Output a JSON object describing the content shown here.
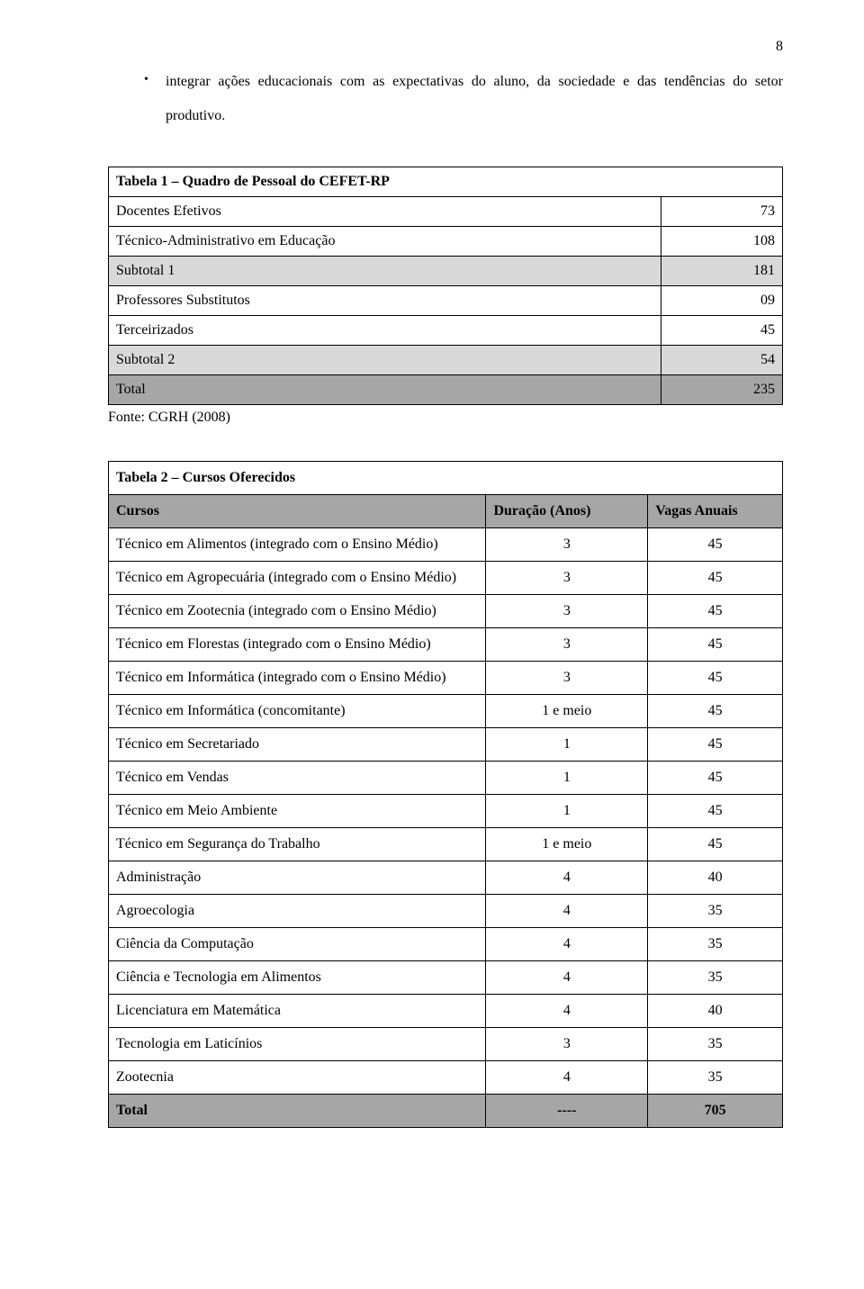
{
  "page_number": "8",
  "bullet_text": "integrar ações educacionais com as expectativas do aluno, da sociedade e das tendências do setor produtivo.",
  "table1": {
    "title": "Tabela 1 – Quadro de Pessoal do CEFET-RP",
    "rows": [
      {
        "label": "Docentes Efetivos",
        "value": "73",
        "type": "row"
      },
      {
        "label": "Técnico-Administrativo em Educação",
        "value": "108",
        "type": "row"
      },
      {
        "label": "Subtotal 1",
        "value": "181",
        "type": "subtotal"
      },
      {
        "label": "Professores Substitutos",
        "value": "09",
        "type": "row"
      },
      {
        "label": "Terceirizados",
        "value": "45",
        "type": "row"
      },
      {
        "label": "Subtotal 2",
        "value": "54",
        "type": "subtotal"
      },
      {
        "label": "Total",
        "value": "235",
        "type": "total"
      }
    ],
    "source": "Fonte: CGRH (2008)",
    "colors": {
      "shaded_light": "#d9d9d9",
      "shaded_dark": "#a6a6a6",
      "border": "#000000"
    }
  },
  "table2": {
    "title": "Tabela 2 – Cursos Oferecidos",
    "headers": {
      "col1": "Cursos",
      "col2": "Duração (Anos)",
      "col3": "Vagas Anuais"
    },
    "rows": [
      {
        "curso": "Técnico em Alimentos (integrado com o Ensino Médio)",
        "duracao": "3",
        "vagas": "45"
      },
      {
        "curso": "Técnico em Agropecuária (integrado com o Ensino Médio)",
        "duracao": "3",
        "vagas": "45"
      },
      {
        "curso": "Técnico em Zootecnia (integrado com o Ensino Médio)",
        "duracao": "3",
        "vagas": "45"
      },
      {
        "curso": "Técnico em Florestas (integrado com o Ensino Médio)",
        "duracao": "3",
        "vagas": "45"
      },
      {
        "curso": "Técnico em Informática (integrado com o Ensino Médio)",
        "duracao": "3",
        "vagas": "45"
      },
      {
        "curso": "Técnico em Informática (concomitante)",
        "duracao": "1 e meio",
        "vagas": "45"
      },
      {
        "curso": "Técnico em Secretariado",
        "duracao": "1",
        "vagas": "45"
      },
      {
        "curso": "Técnico em Vendas",
        "duracao": "1",
        "vagas": "45"
      },
      {
        "curso": "Técnico em Meio Ambiente",
        "duracao": "1",
        "vagas": "45"
      },
      {
        "curso": "Técnico em Segurança do Trabalho",
        "duracao": "1 e meio",
        "vagas": "45"
      },
      {
        "curso": "Administração",
        "duracao": "4",
        "vagas": "40"
      },
      {
        "curso": "Agroecologia",
        "duracao": "4",
        "vagas": "35"
      },
      {
        "curso": "Ciência da Computação",
        "duracao": "4",
        "vagas": "35"
      },
      {
        "curso": "Ciência e Tecnologia em Alimentos",
        "duracao": "4",
        "vagas": "35"
      },
      {
        "curso": "Licenciatura em Matemática",
        "duracao": "4",
        "vagas": "40"
      },
      {
        "curso": "Tecnologia em Laticínios",
        "duracao": "3",
        "vagas": "35"
      },
      {
        "curso": "Zootecnia",
        "duracao": "4",
        "vagas": "35"
      }
    ],
    "total": {
      "label": "Total",
      "duracao": "----",
      "vagas": "705"
    },
    "colors": {
      "shaded_dark": "#a6a6a6",
      "border": "#000000"
    }
  }
}
